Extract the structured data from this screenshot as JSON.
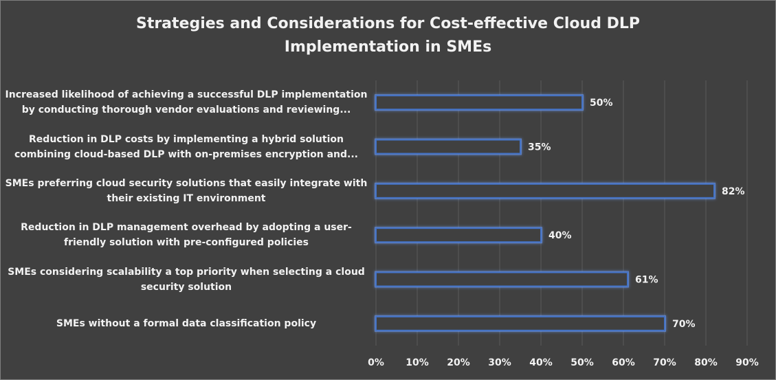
{
  "chart_data": {
    "type": "bar",
    "orientation": "horizontal",
    "title_lines": [
      "Strategies and Considerations for Cost-effective Cloud DLP",
      "Implementation in SMEs"
    ],
    "categories": [
      {
        "line1": "Increased likelihood of achieving a successful DLP implementation",
        "line2": "by conducting thorough vendor evaluations and reviewing..."
      },
      {
        "line1": "Reduction in DLP costs by implementing a hybrid solution",
        "line2": "combining cloud-based DLP with on-premises encryption and..."
      },
      {
        "line1": "SMEs preferring cloud security solutions that easily integrate with",
        "line2": "their existing IT environment"
      },
      {
        "line1": "Reduction in DLP management overhead by adopting a user-",
        "line2": "friendly solution with pre-configured policies"
      },
      {
        "line1": "SMEs considering scalability a top priority when selecting a cloud",
        "line2": "security solution"
      },
      {
        "line1": "SMEs without a formal data classification policy",
        "line2": ""
      }
    ],
    "values": [
      50,
      35,
      82,
      40,
      61,
      70
    ],
    "value_labels": [
      "50%",
      "35%",
      "82%",
      "40%",
      "61%",
      "70%"
    ],
    "xlim": [
      0,
      90
    ],
    "x_ticks": [
      0,
      10,
      20,
      30,
      40,
      50,
      60,
      70,
      80,
      90
    ],
    "x_tick_labels": [
      "0%",
      "10%",
      "20%",
      "30%",
      "40%",
      "50%",
      "60%",
      "70%",
      "80%",
      "90%"
    ],
    "grid": "vertical",
    "legend": "none",
    "colors": {
      "background": "#404040",
      "bar_outline": "#4472c4",
      "bar_glow": "#6fa0ff",
      "bar_fill": "#404040",
      "gridline": "#5a5a5a",
      "text": "#f2f2f2"
    }
  }
}
